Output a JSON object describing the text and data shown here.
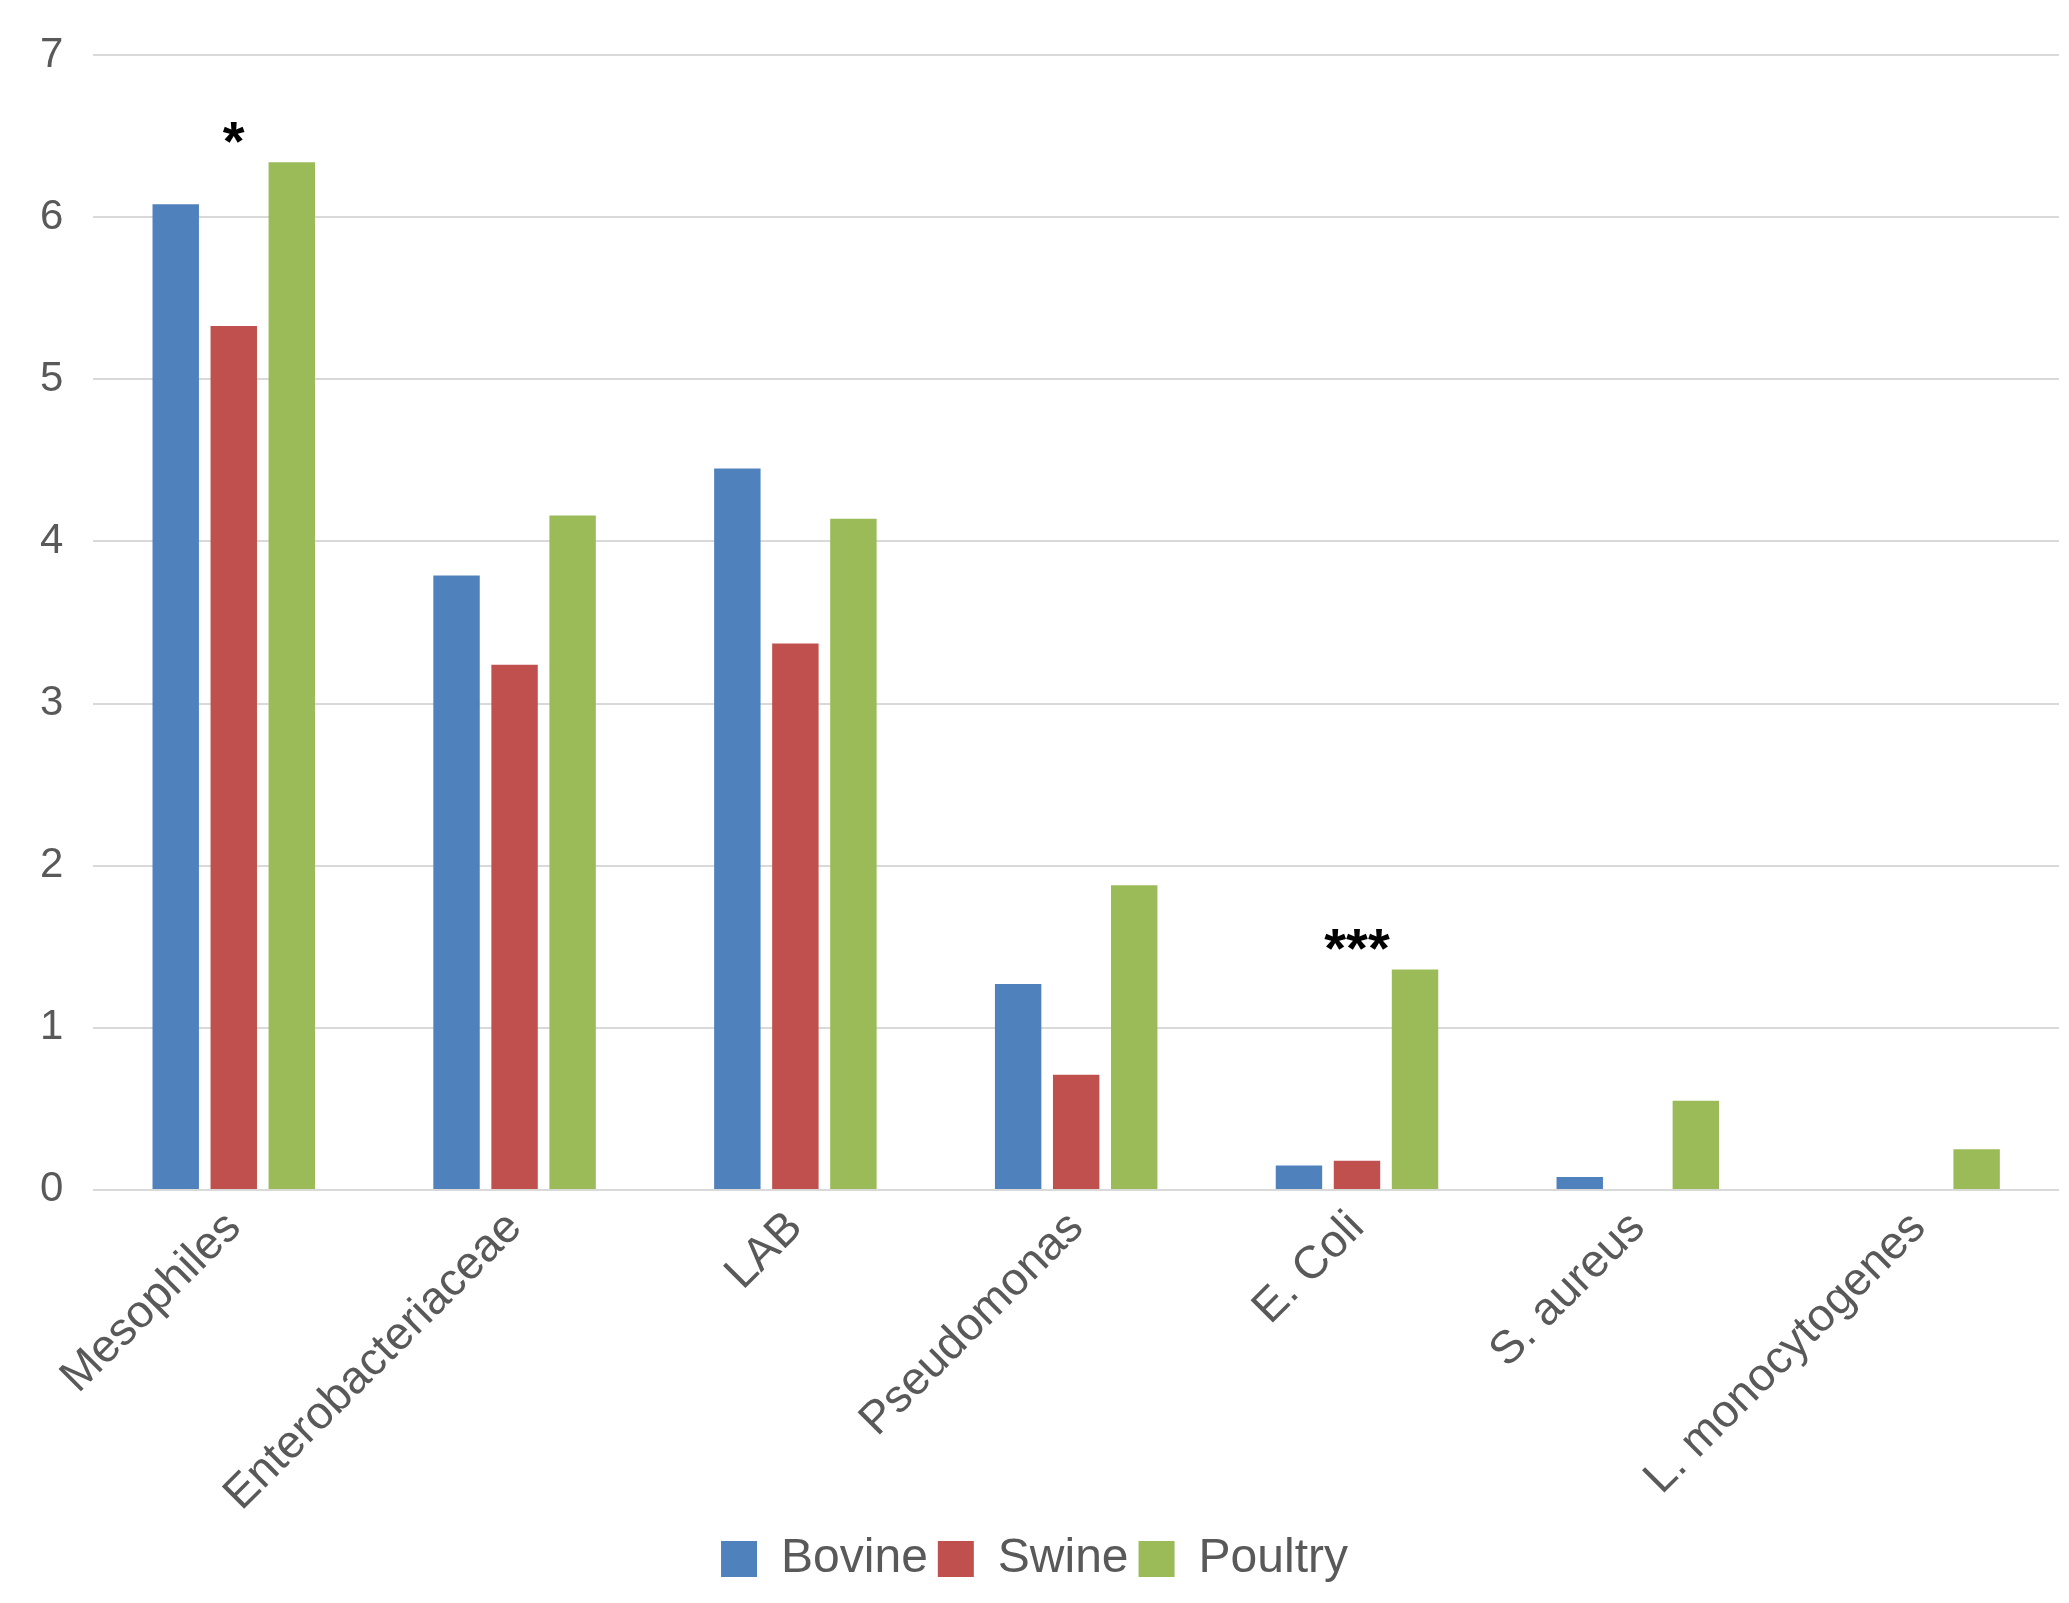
{
  "chart_data": {
    "type": "bar",
    "categories": [
      "Mesophiles",
      "Enterobacteriaceae",
      "LAB",
      "Pseudomonas",
      "E. Coli",
      "S. aureus",
      "L. monocytogenes"
    ],
    "series": [
      {
        "name": "Bovine",
        "color": "#4f81bd",
        "values": [
          6.08,
          3.79,
          4.45,
          1.27,
          0.15,
          0.08,
          null
        ]
      },
      {
        "name": "Swine",
        "color": "#c0504d",
        "values": [
          5.33,
          3.24,
          3.37,
          0.71,
          0.18,
          null,
          null
        ]
      },
      {
        "name": "Poultry",
        "color": "#9bbb59",
        "values": [
          6.34,
          4.16,
          4.14,
          1.88,
          1.36,
          0.55,
          0.25
        ]
      }
    ],
    "ylim": [
      0,
      7
    ],
    "yticks": [
      0,
      1,
      2,
      3,
      4,
      5,
      6,
      7
    ],
    "grid": "y",
    "legend": "bottom",
    "annotations": [
      "*",
      "***"
    ]
  }
}
